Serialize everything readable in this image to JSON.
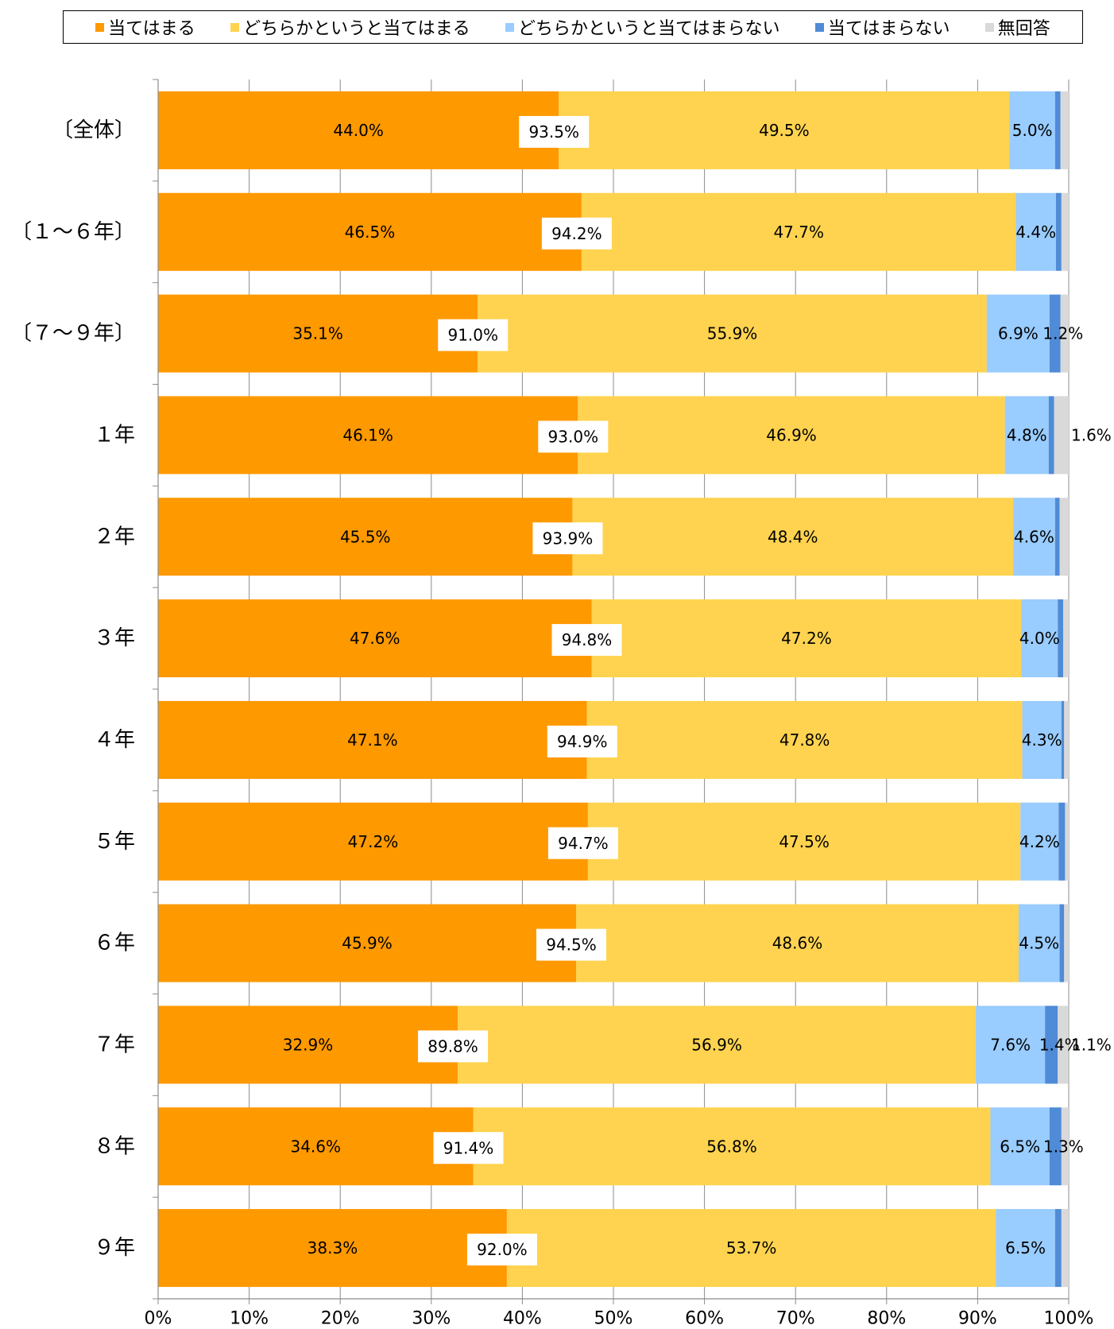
{
  "chart_data": {
    "type": "bar",
    "orientation": "horizontal",
    "stacked": true,
    "title": "",
    "xlabel": "",
    "ylabel": "",
    "xlim": [
      0,
      100
    ],
    "x_ticks": [
      "0%",
      "10%",
      "20%",
      "30%",
      "40%",
      "50%",
      "60%",
      "70%",
      "80%",
      "90%",
      "100%"
    ],
    "grid": true,
    "legend_position": "top",
    "categories": [
      "〔全体〕",
      "〔１～６年〕",
      "〔７～９年〕",
      "１年",
      "２年",
      "３年",
      "４年",
      "５年",
      "６年",
      "７年",
      "８年",
      "９年"
    ],
    "series": [
      {
        "name": "当てはまる",
        "color": "#FF9900",
        "values": [
          44.0,
          46.5,
          35.1,
          46.1,
          45.5,
          47.6,
          47.1,
          47.2,
          45.9,
          32.9,
          34.6,
          38.3
        ],
        "labels": [
          "44.0%",
          "46.5%",
          "35.1%",
          "46.1%",
          "45.5%",
          "47.6%",
          "47.1%",
          "47.2%",
          "45.9%",
          "32.9%",
          "34.6%",
          "38.3%"
        ]
      },
      {
        "name": "どちらかというと当てはまる",
        "color": "#FFD34F",
        "values": [
          49.5,
          47.7,
          55.9,
          46.9,
          48.4,
          47.2,
          47.8,
          47.5,
          48.6,
          56.9,
          56.8,
          53.7
        ],
        "labels": [
          "49.5%",
          "47.7%",
          "55.9%",
          "46.9%",
          "48.4%",
          "47.2%",
          "47.8%",
          "47.5%",
          "48.6%",
          "56.9%",
          "56.8%",
          "53.7%"
        ]
      },
      {
        "name": "どちらかというと当てはまらない",
        "color": "#99CCFF",
        "values": [
          5.0,
          4.4,
          6.9,
          4.8,
          4.6,
          4.0,
          4.3,
          4.2,
          4.5,
          7.6,
          6.5,
          6.5
        ],
        "labels": [
          "5.0%",
          "4.4%",
          "6.9%",
          "4.8%",
          "4.6%",
          "4.0%",
          "4.3%",
          "4.2%",
          "4.5%",
          "7.6%",
          "6.5%",
          "6.5%"
        ]
      },
      {
        "name": "当てはまらない",
        "color": "#4F8BD6",
        "values": [
          0.6,
          0.6,
          1.2,
          0.6,
          0.5,
          0.6,
          0.3,
          0.7,
          0.5,
          1.4,
          1.3,
          0.7
        ],
        "labels": [
          "",
          "",
          "1.2%",
          "",
          "",
          "",
          "",
          "",
          "",
          "1.4%",
          "1.3%",
          ""
        ]
      },
      {
        "name": "無回答",
        "color": "#D9D9D9",
        "values": [
          0.9,
          0.8,
          0.9,
          1.6,
          1.0,
          0.6,
          0.5,
          0.4,
          0.5,
          1.1,
          0.8,
          0.8
        ],
        "labels": [
          "",
          "",
          "",
          "1.6%",
          "",
          "",
          "",
          "",
          "",
          "1.1%",
          "",
          ""
        ]
      }
    ],
    "totals_label": [
      "93.5%",
      "94.2%",
      "91.0%",
      "93.0%",
      "93.9%",
      "94.8%",
      "94.9%",
      "94.7%",
      "94.5%",
      "89.8%",
      "91.4%",
      "92.0%"
    ]
  }
}
